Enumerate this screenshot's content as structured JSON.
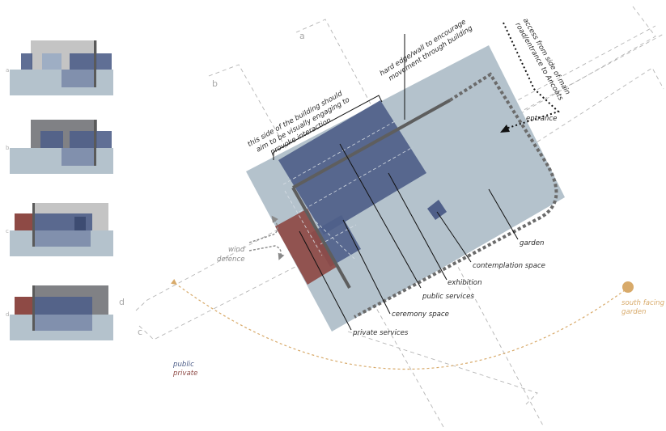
{
  "section_marks": {
    "a": "a",
    "b": "b",
    "c": "c",
    "d": "d"
  },
  "thumb_marks": {
    "a": "a",
    "b": "b",
    "c": "c",
    "d": "d"
  },
  "annotations": {
    "visual_side": [
      "this side of the building should",
      "aim to be visually engaging to",
      "provoke interaction."
    ],
    "hard_edge": [
      "hard edge/wall to encourage",
      "movement through building"
    ],
    "access": [
      "access from side of main",
      "road/entrance to Ancoats"
    ],
    "entrance": "entrance",
    "garden": "garden",
    "contemplation": "contemplation space",
    "exhibition": "exhibition",
    "public_services": "public services",
    "ceremony": "ceremony space",
    "private_services": "private services",
    "wind": [
      "wind",
      "defence"
    ],
    "south": [
      "south facing",
      "garden"
    ]
  },
  "legend": {
    "public": "public",
    "private": "private"
  },
  "colors": {
    "site": "#b4c2cc",
    "public": "#4f5f89",
    "private": "#8e4a45",
    "grey_block": "#bdbdbd",
    "dark_grey_block": "#7e7f82",
    "sun_path": "#d8aa6a",
    "dashed_line": "#b0b0b0",
    "wall": "#5e5e5e"
  }
}
